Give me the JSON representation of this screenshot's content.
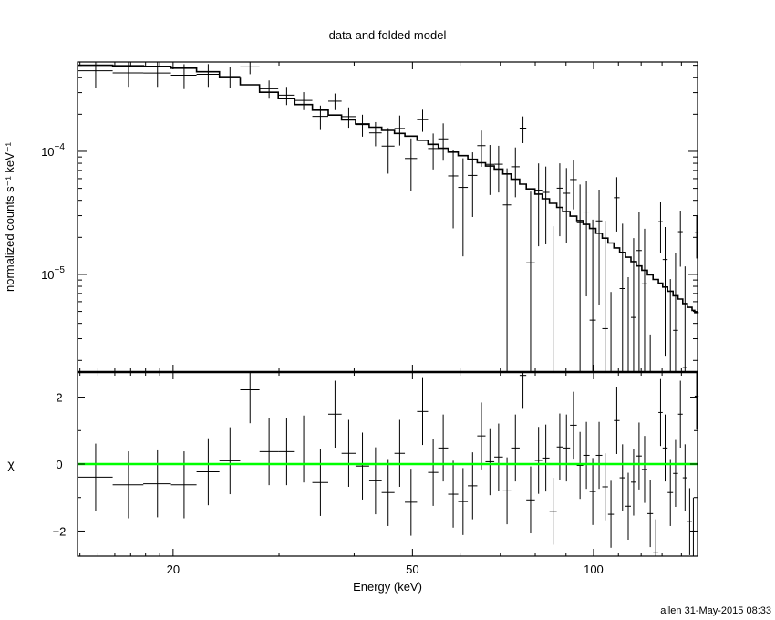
{
  "chart_data": {
    "type": "scatter",
    "title": "data and folded model",
    "xlabel": "Energy (keV)",
    "ylabel_top": "normalized counts s⁻¹ keV⁻¹",
    "ylabel_bottom": "χ",
    "x_scale": "log",
    "xlim": [
      13.87,
      148.9
    ],
    "ylim_top": [
      1.61e-06,
      0.000532
    ],
    "ylim_bottom": [
      -2.75,
      2.75
    ],
    "x_tick_labels": [
      {
        "value": 20,
        "label": "20"
      },
      {
        "value": 50,
        "label": "50"
      },
      {
        "value": 100,
        "label": "100"
      }
    ],
    "y_tick_labels_top": [
      {
        "value": 0.0001,
        "base": "10",
        "exp": "−4"
      },
      {
        "value": 1e-05,
        "base": "10",
        "exp": "−5"
      }
    ],
    "y_tick_labels_bottom": [
      {
        "value": -2,
        "label": "−2"
      },
      {
        "value": 0,
        "label": "0"
      },
      {
        "value": 2,
        "label": "2"
      }
    ],
    "reference_line": {
      "value": 0,
      "color": "#00ff00"
    },
    "bin_fields": [
      "energy_keV",
      "half_width_keV",
      "model",
      "chi",
      "relative_error"
    ],
    "bins": [
      [
        14.87,
        1.0,
        0.0005,
        -0.39,
        0.25
      ],
      [
        16.86,
        0.99,
        0.000495,
        -0.62,
        0.2
      ],
      [
        18.84,
        1.0,
        0.00049,
        -0.59,
        0.2
      ],
      [
        20.86,
        1.02,
        0.000474,
        -0.62,
        0.2
      ],
      [
        22.88,
        1.0,
        0.000443,
        -0.23,
        0.2
      ],
      [
        24.87,
        0.99,
        0.000398,
        0.1,
        0.2
      ],
      [
        26.85,
        0.99,
        0.000347,
        2.22,
        0.18
      ],
      [
        28.88,
        1.03,
        0.000302,
        0.37,
        0.18
      ],
      [
        30.89,
        0.98,
        0.000268,
        0.37,
        0.18
      ],
      [
        32.97,
        1.11,
        0.00024,
        0.45,
        0.18
      ],
      [
        35.15,
        1.07,
        0.000216,
        -0.55,
        0.2
      ],
      [
        37.17,
        0.95,
        0.000197,
        1.49,
        0.2
      ],
      [
        39.17,
        1.05,
        0.00018,
        0.32,
        0.2
      ],
      [
        41.29,
        1.08,
        0.000167,
        -0.06,
        0.2
      ],
      [
        43.41,
        1.04,
        0.000157,
        -0.5,
        0.2
      ],
      [
        45.56,
        1.12,
        0.000148,
        -0.85,
        0.3
      ],
      [
        47.62,
        0.95,
        0.00014,
        0.32,
        0.3
      ],
      [
        49.73,
        1.16,
        0.000133,
        -1.14,
        0.3
      ],
      [
        51.98,
        1.09,
        0.000123,
        1.57,
        0.3
      ],
      [
        54.13,
        1.06,
        0.000114,
        -0.25,
        0.3
      ],
      [
        56.25,
        1.06,
        0.000106,
        0.48,
        0.4
      ],
      [
        58.44,
        1.13,
        9.86e-05,
        -0.9,
        0.4
      ],
      [
        60.68,
        1.12,
        9.22e-05,
        -1.12,
        0.4
      ],
      [
        62.94,
        1.14,
        8.61e-05,
        -0.65,
        0.4
      ],
      [
        65.1,
        1.03,
        8.07e-05,
        0.84,
        0.45
      ],
      [
        67.26,
        1.13,
        7.6e-05,
        0.07,
        0.45
      ],
      [
        69.54,
        1.15,
        7.18e-05,
        0.21,
        0.45
      ],
      [
        71.81,
        1.13,
        6.55e-05,
        -0.8,
        0.55
      ],
      [
        74.15,
        1.21,
        5.93e-05,
        0.48,
        0.55
      ],
      [
        76.33,
        0.97,
        5.41e-05,
        2.65,
        0.7
      ],
      [
        78.6,
        1.3,
        4.95e-05,
        -1.07,
        0.7
      ],
      [
        81.03,
        1.13,
        4.49e-05,
        0.11,
        0.7
      ],
      [
        83.31,
        1.16,
        4.12e-05,
        0.18,
        0.7
      ],
      [
        85.67,
        1.2,
        3.78e-05,
        -1.41,
        0.85
      ],
      [
        87.88,
        1.01,
        3.5e-05,
        0.51,
        0.85
      ],
      [
        90.15,
        1.26,
        3.24e-05,
        0.48,
        0.85
      ],
      [
        92.6,
        1.2,
        2.97e-05,
        1.16,
        0.85
      ],
      [
        94.96,
        1.16,
        2.74e-05,
        -0.04,
        1.0
      ],
      [
        97.3,
        1.19,
        2.55e-05,
        0.26,
        1.0
      ],
      [
        99.7,
        1.2,
        2.36e-05,
        -0.82,
        1.0
      ],
      [
        102.15,
        1.25,
        2.16e-05,
        0.26,
        1.0
      ],
      [
        104.55,
        1.15,
        1.97e-05,
        -0.68,
        1.2
      ],
      [
        106.9,
        1.2,
        1.8e-05,
        -1.5,
        1.2
      ],
      [
        109.3,
        1.2,
        1.64e-05,
        1.3,
        1.2
      ],
      [
        111.75,
        1.25,
        1.51e-05,
        -0.41,
        1.2
      ],
      [
        114.2,
        1.2,
        1.38e-05,
        -1.26,
        1.2
      ],
      [
        116.6,
        1.2,
        1.27e-05,
        -0.54,
        1.2
      ],
      [
        119.05,
        1.25,
        1.17e-05,
        0.24,
        1.4
      ],
      [
        121.6,
        1.3,
        1.08e-05,
        -0.16,
        1.4
      ],
      [
        124.25,
        1.35,
        9.9e-06,
        -1.48,
        1.4
      ],
      [
        126.9,
        1.3,
        9.1e-06,
        -2.65,
        1.4
      ],
      [
        129.25,
        1.05,
        8.5e-06,
        1.54,
        1.4
      ],
      [
        131.55,
        1.25,
        7.9e-06,
        0.48,
        1.4
      ],
      [
        134.2,
        1.4,
        7.3e-06,
        -0.85,
        1.7
      ],
      [
        136.9,
        1.3,
        6.7e-06,
        -0.28,
        1.7
      ],
      [
        139.45,
        1.25,
        6.3e-06,
        1.49,
        1.7
      ],
      [
        141.95,
        1.25,
        5.8e-06,
        -0.41,
        1.7
      ],
      [
        144.5,
        1.3,
        5.4e-06,
        -1.72,
        1.7
      ],
      [
        146.55,
        0.75,
        5.1e-06,
        -2.0,
        1.7
      ],
      [
        148.4,
        1.1,
        4.9e-06,
        2.03,
        1.7
      ]
    ]
  },
  "footer": {
    "stamp": "allen 31-May-2015 08:33"
  }
}
